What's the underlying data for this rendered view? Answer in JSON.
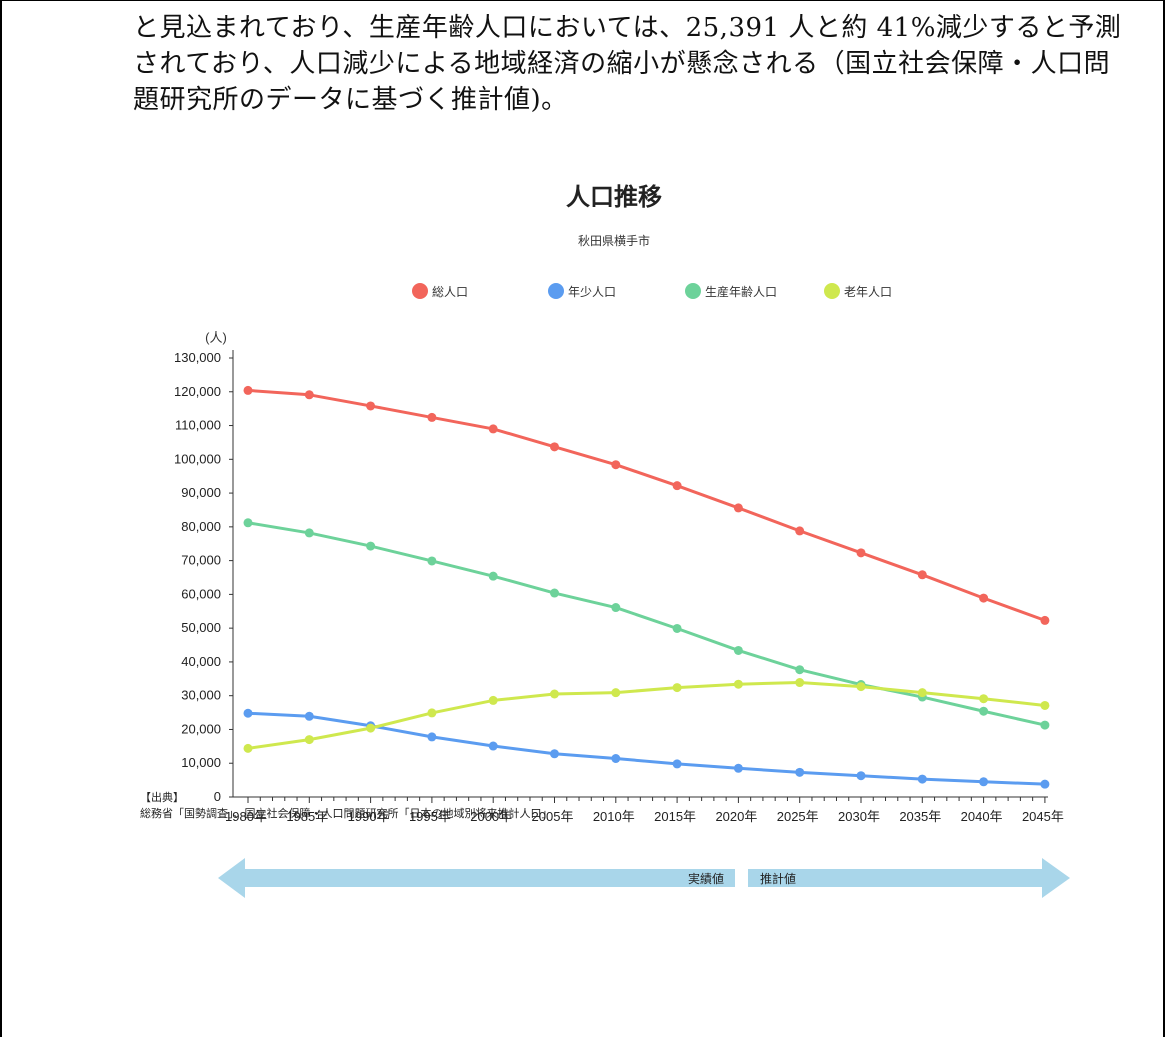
{
  "paragraph": {
    "lines": [
      "と見込まれており、生産年齢人口においては、25,391 人と約 41%減少すると予測",
      "されており、人口減少による地域経済の縮小が懸念される（国立社会保障・人口問",
      "題研究所のデータに基づく推計値)。"
    ]
  },
  "chart_data": {
    "type": "line",
    "title": "人口推移",
    "subtitle": "秋田県横手市",
    "ylabel": "(人)",
    "ylim": [
      0,
      130000
    ],
    "yticks": [
      "0",
      "10,000",
      "20,000",
      "30,000",
      "40,000",
      "50,000",
      "60,000",
      "70,000",
      "80,000",
      "90,000",
      "100,000",
      "110,000",
      "120,000",
      "130,000"
    ],
    "categories": [
      "1980年",
      "1985年",
      "1990年",
      "1995年",
      "2000年",
      "2005年",
      "2010年",
      "2015年",
      "2020年",
      "2025年",
      "2030年",
      "2035年",
      "2040年",
      "2045年"
    ],
    "legend_position": "top",
    "grid": false,
    "series": [
      {
        "name": "総人口",
        "color": "#f2655b",
        "values": [
          120400,
          119100,
          115800,
          112400,
          109000,
          103700,
          98400,
          92200,
          85600,
          78800,
          72300,
          65800,
          58900,
          52300
        ]
      },
      {
        "name": "年少人口",
        "color": "#5b9cf0",
        "values": [
          24800,
          23900,
          21100,
          17800,
          15100,
          12800,
          11400,
          9800,
          8500,
          7300,
          6300,
          5300,
          4500,
          3800
        ]
      },
      {
        "name": "生産年齢人口",
        "color": "#6dd29a",
        "values": [
          81200,
          78200,
          74300,
          69900,
          65400,
          60400,
          56100,
          49900,
          43400,
          37700,
          33300,
          29600,
          25400,
          21300
        ]
      },
      {
        "name": "老年人口",
        "color": "#cfe84e",
        "values": [
          14400,
          17000,
          20400,
          24900,
          28600,
          30500,
          30900,
          32400,
          33400,
          33900,
          32700,
          30900,
          29100,
          27100
        ]
      }
    ],
    "arrow": {
      "left_label": "実績値",
      "right_label": "推計値",
      "color": "#a9d6ea"
    }
  },
  "source": {
    "heading": "【出典】",
    "text": "総務省「国勢調査」、国立社会保障・人口問題研究所「日本の地域別将来推計人口」"
  }
}
